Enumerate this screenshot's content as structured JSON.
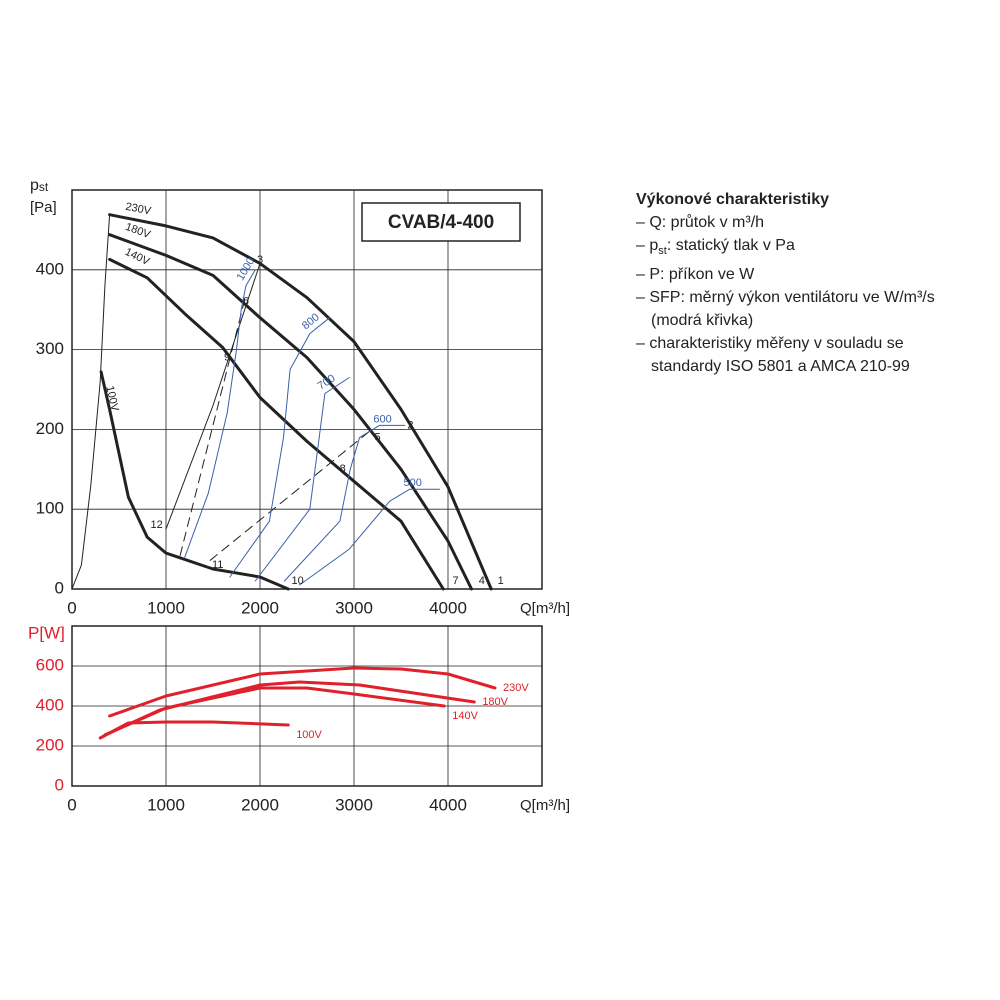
{
  "chart_data": [
    {
      "type": "line",
      "title": "CVAB/4-400",
      "ylabel": "p",
      "ylabel_sub": "st",
      "yunit": "[Pa]",
      "xlabel": "Q[m³/h]",
      "xlim": [
        0,
        5000
      ],
      "xticks": [
        0,
        1000,
        2000,
        3000,
        4000
      ],
      "ylim": [
        0,
        500
      ],
      "yticks": [
        0,
        100,
        200,
        300,
        400
      ],
      "grid": true,
      "tick_color": "#222222",
      "series": [
        {
          "name": "230V",
          "color": "#222222",
          "style": "bold",
          "label_at": "start",
          "x": [
            400,
            1000,
            1500,
            2000,
            2500,
            3000,
            3500,
            4000,
            4460
          ],
          "values": [
            469,
            455,
            440,
            408,
            365,
            310,
            225,
            128,
            0
          ]
        },
        {
          "name": "180V",
          "color": "#222222",
          "style": "bold",
          "label_at": "start",
          "x": [
            400,
            1000,
            1500,
            2000,
            2500,
            3000,
            3500,
            4000,
            4250
          ],
          "values": [
            444,
            418,
            393,
            340,
            290,
            225,
            150,
            60,
            0
          ]
        },
        {
          "name": "140V",
          "color": "#222222",
          "style": "bold",
          "label_at": "start",
          "x": [
            400,
            800,
            1200,
            1600,
            2000,
            2500,
            3000,
            3500,
            3950
          ],
          "values": [
            413,
            390,
            345,
            303,
            240,
            185,
            135,
            85,
            0
          ]
        },
        {
          "name": "100V",
          "color": "#222222",
          "style": "bold",
          "label_at": "start",
          "x": [
            310,
            400,
            600,
            800,
            1000,
            1500,
            2000,
            2300
          ],
          "values": [
            272,
            225,
            115,
            65,
            45,
            25,
            15,
            0
          ]
        },
        {
          "color": "#222222",
          "style": "thin",
          "x": [
            0,
            100,
            200,
            300,
            350,
            400
          ],
          "values": [
            0,
            30,
            130,
            260,
            380,
            469
          ]
        },
        {
          "color": "#222222",
          "style": "thin",
          "x": [
            1000,
            1500,
            2000
          ],
          "values": [
            75,
            230,
            408
          ]
        },
        {
          "color": "#222222",
          "style": "dashed",
          "x": [
            1150,
            1838
          ],
          "values": [
            42,
            363
          ]
        },
        {
          "color": "#222222",
          "style": "dashed",
          "x": [
            1470,
            3190
          ],
          "values": [
            36,
            200
          ]
        },
        {
          "name": "1000",
          "color": "#3a5fa8",
          "style": "thin",
          "label_at": "end",
          "x": [
            1200,
            1450,
            1650,
            1750,
            1800,
            1850,
            1950
          ],
          "values": [
            40,
            120,
            220,
            300,
            350,
            380,
            400
          ]
        },
        {
          "name": "800",
          "color": "#3a5fa8",
          "style": "thin",
          "label_at": "end",
          "x": [
            1680,
            2100,
            2250,
            2320,
            2530,
            2740
          ],
          "values": [
            15,
            85,
            190,
            275,
            320,
            340
          ]
        },
        {
          "name": "700",
          "color": "#3a5fa8",
          "style": "thin",
          "label_at": "end",
          "x": [
            1950,
            2530,
            2630,
            2690,
            2950
          ],
          "values": [
            10,
            100,
            190,
            245,
            265
          ]
        },
        {
          "name": "600",
          "color": "#3a5fa8",
          "style": "thin",
          "label_at": "end",
          "x": [
            2260,
            2850,
            2960,
            3060,
            3270,
            3540
          ],
          "values": [
            10,
            85,
            150,
            190,
            205,
            205
          ]
        },
        {
          "name": "500",
          "color": "#3a5fa8",
          "style": "thin",
          "label_at": "end",
          "x": [
            2420,
            2950,
            3380,
            3590,
            3910
          ],
          "values": [
            5,
            50,
            110,
            125,
            125
          ]
        }
      ],
      "points": [
        {
          "label": "1",
          "x": 4560,
          "y": 10
        },
        {
          "label": "2",
          "x": 3600,
          "y": 205
        },
        {
          "label": "3",
          "x": 2000,
          "y": 412
        },
        {
          "label": "4",
          "x": 4360,
          "y": 10
        },
        {
          "label": "5",
          "x": 3250,
          "y": 190
        },
        {
          "label": "6",
          "x": 1850,
          "y": 360
        },
        {
          "label": "7",
          "x": 4080,
          "y": 10
        },
        {
          "label": "8",
          "x": 2880,
          "y": 150
        },
        {
          "label": "9",
          "x": 1650,
          "y": 290
        },
        {
          "label": "10",
          "x": 2400,
          "y": 10
        },
        {
          "label": "11",
          "x": 1550,
          "y": 30
        },
        {
          "label": "12",
          "x": 900,
          "y": 80
        }
      ]
    },
    {
      "type": "line",
      "ylabel": "P[W]",
      "xlabel": "Q[m³/h]",
      "xlim": [
        0,
        5000
      ],
      "xticks": [
        0,
        1000,
        2000,
        3000,
        4000
      ],
      "ylim": [
        0,
        800
      ],
      "yticks": [
        0,
        200,
        400,
        600
      ],
      "grid": true,
      "tick_color": "#e0202a",
      "series": [
        {
          "name": "230V",
          "color": "#e0202a",
          "style": "power",
          "label_at": "end",
          "x": [
            400,
            1000,
            2000,
            3000,
            3500,
            4000,
            4500
          ],
          "values": [
            350,
            450,
            560,
            590,
            585,
            560,
            490
          ]
        },
        {
          "name": "180V",
          "color": "#e0202a",
          "style": "power",
          "label_at": "end",
          "x": [
            350,
            935,
            2000,
            2420,
            3060,
            4280
          ],
          "values": [
            255,
            380,
            505,
            520,
            505,
            420
          ]
        },
        {
          "name": "140V",
          "color": "#e0202a",
          "style": "power",
          "label_at": "end",
          "x": [
            350,
            1000,
            2000,
            2500,
            3000,
            3960
          ],
          "values": [
            255,
            390,
            490,
            490,
            460,
            400
          ]
        },
        {
          "name": "100V",
          "color": "#e0202a",
          "style": "power",
          "label_at": "end",
          "x": [
            300,
            600,
            1000,
            1500,
            2300
          ],
          "values": [
            240,
            315,
            320,
            320,
            305
          ]
        }
      ]
    }
  ],
  "notes": {
    "title": "Výkonové charakteristiky",
    "items": [
      {
        "text": "– Q: průtok v m³/h"
      },
      {
        "pre": "– p",
        "sub": "st",
        "text": ": statický tlak v Pa"
      },
      {
        "text": "– P: příkon ve W"
      },
      {
        "text": "– SFP: měrný výkon ventilátoru ve W/m³/s (modrá křivka)"
      },
      {
        "text": "– charakteristiky měřeny v souladu se standardy ISO 5801 a AMCA 210-99"
      }
    ]
  }
}
